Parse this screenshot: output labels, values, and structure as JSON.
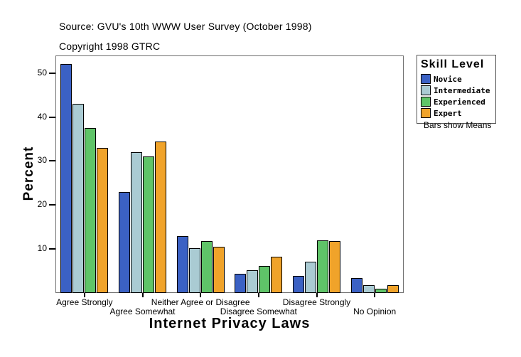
{
  "header": {
    "source_line": "Source: GVU's 10th WWW User Survey (October 1998)",
    "copyright_line": "Copyright 1998 GTRC"
  },
  "legend": {
    "title": "Skill Level",
    "note": "Bars show Means"
  },
  "chart_data": {
    "type": "bar",
    "title": "",
    "xlabel": "Internet Privacy Laws",
    "ylabel": "Percent",
    "ylim": [
      0,
      54
    ],
    "yticks": [
      10,
      20,
      30,
      40,
      50
    ],
    "grid": false,
    "legend_position": "right",
    "annotation": "Bars show Means",
    "categories": [
      "Agree Strongly",
      "Agree Somewhat",
      "Neither Agree or Disagree",
      "Disagree Somewhat",
      "Disagree Strongly",
      "No Opinion"
    ],
    "series": [
      {
        "name": "Novice",
        "color": "#3B61C4",
        "values": [
          52,
          23,
          13,
          4.3,
          3.9,
          3.4
        ]
      },
      {
        "name": "Intermediate",
        "color": "#AACBD3",
        "values": [
          43,
          32,
          10.2,
          5.2,
          7.1,
          1.8
        ]
      },
      {
        "name": "Experienced",
        "color": "#5FC468",
        "values": [
          37.5,
          31,
          11.8,
          6.2,
          12,
          1.0
        ]
      },
      {
        "name": "Expert",
        "color": "#F0A32A",
        "values": [
          33,
          34.5,
          10.5,
          8.2,
          11.8,
          1.7
        ]
      }
    ]
  }
}
